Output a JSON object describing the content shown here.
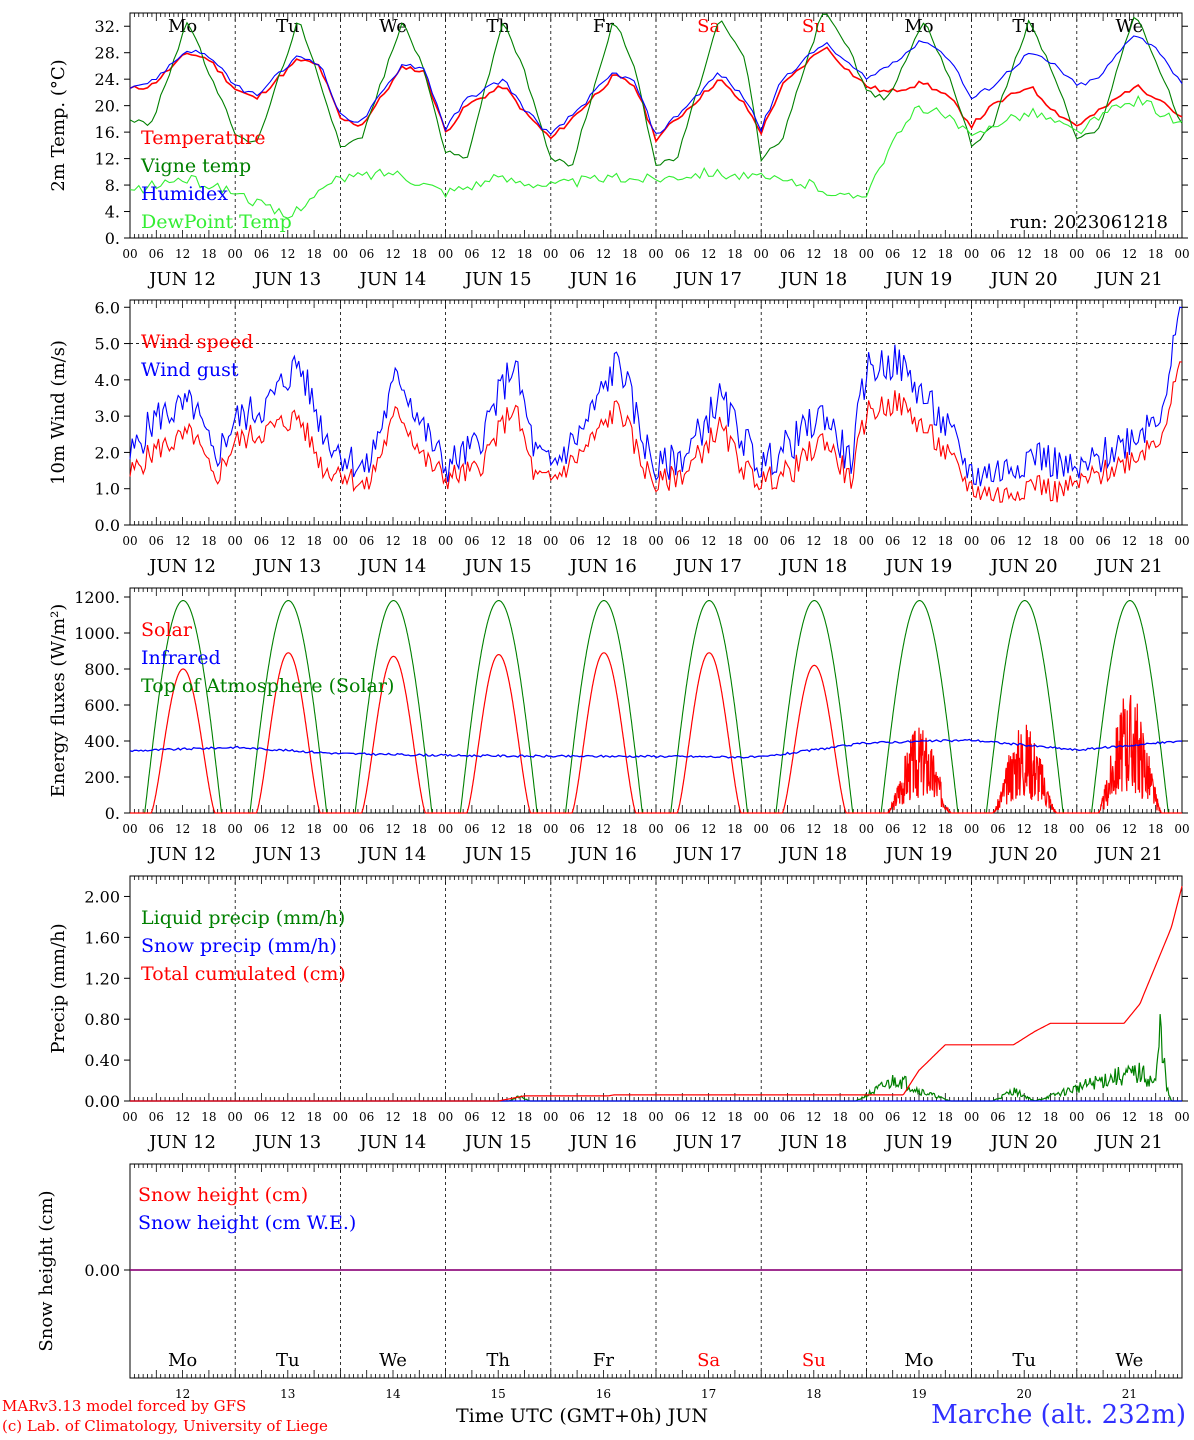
{
  "footer": {
    "model_line": "MARv3.13 model forced by GFS",
    "credit_line": "(c) Lab. of Climatology, University of Liege",
    "xaxis_title": "Time UTC (GMT+0h)",
    "month": "JUN",
    "station": "Marche (alt. 232m)"
  },
  "days": {
    "weekday_labels": [
      "Mo",
      "Tu",
      "We",
      "Th",
      "Fr",
      "Sa",
      "Su",
      "Mo",
      "Tu",
      "We"
    ],
    "weekend_index": [
      5,
      6
    ],
    "date_labels": [
      "JUN 12",
      "JUN 13",
      "JUN 14",
      "JUN 15",
      "JUN 16",
      "JUN 17",
      "JUN 18",
      "JUN 19",
      "JUN 20",
      "JUN 21"
    ],
    "day_numbers": [
      "12",
      "13",
      "14",
      "15",
      "16",
      "17",
      "18",
      "19",
      "20",
      "21"
    ],
    "hour_ticks": [
      "00",
      "06",
      "12",
      "18"
    ],
    "final_tick": "00"
  },
  "colors": {
    "red": "#ff0000",
    "dark_green": "#008000",
    "blue": "#0000ff",
    "light_green": "#33ee33",
    "purple": "#800080"
  },
  "chart_data": [
    {
      "type": "line",
      "ylabel": "2m Temp. (°C)",
      "ylim": [
        0,
        34
      ],
      "ytick_labels": [
        "0.",
        "4.",
        "8.",
        "12.",
        "16.",
        "20.",
        "24.",
        "28.",
        "32."
      ],
      "annotation": "run: 2023061218",
      "x_unit": "days since JUN 12 00 UTC",
      "series": [
        {
          "name": "Temperature",
          "color": "red",
          "x": [
            0,
            0.2,
            0.55,
            0.75,
            1,
            1.2,
            1.6,
            1.8,
            2,
            2.2,
            2.6,
            2.8,
            3,
            3.2,
            3.55,
            3.75,
            4,
            4.2,
            4.6,
            4.8,
            5,
            5.2,
            5.6,
            5.85,
            6,
            6.2,
            6.6,
            6.85,
            7,
            7.2,
            7.55,
            7.8,
            8,
            8.2,
            8.55,
            8.8,
            9,
            9.2,
            9.55,
            9.8,
            10
          ],
          "y": [
            22.5,
            23,
            28,
            27,
            22.5,
            21,
            27,
            26,
            18,
            17,
            26,
            25,
            16,
            20,
            23,
            19,
            15,
            18,
            24.5,
            23,
            15,
            18,
            24,
            20,
            16,
            23,
            29,
            25,
            23,
            22,
            23.5,
            21,
            17,
            20,
            23,
            19,
            17,
            19,
            23,
            21,
            18
          ]
        },
        {
          "name": "Vigne temp",
          "color": "dark_green",
          "x": [
            0,
            0.2,
            0.55,
            0.75,
            1,
            1.2,
            1.6,
            1.8,
            2,
            2.2,
            2.6,
            2.8,
            3,
            3.2,
            3.55,
            3.75,
            4,
            4.2,
            4.6,
            4.8,
            5,
            5.2,
            5.6,
            5.85,
            6,
            6.2,
            6.6,
            6.85,
            7,
            7.2,
            7.55,
            7.8,
            8,
            8.2,
            8.55,
            8.8,
            9,
            9.2,
            9.55,
            9.8,
            10
          ],
          "y": [
            18,
            17,
            33,
            25,
            16,
            14,
            33,
            24,
            14,
            15,
            33,
            25,
            13,
            12,
            33,
            25,
            12,
            11,
            33,
            26,
            11,
            12,
            33,
            27,
            12,
            15,
            35,
            28,
            22,
            21,
            33,
            24,
            14,
            17,
            33,
            24,
            15,
            16,
            34,
            25,
            17
          ]
        },
        {
          "name": "Humidex",
          "color": "blue",
          "x": [
            0,
            0.2,
            0.55,
            0.75,
            1,
            1.2,
            1.6,
            1.8,
            2,
            2.2,
            2.6,
            2.8,
            3,
            3.2,
            3.55,
            3.75,
            4,
            4.2,
            4.6,
            4.8,
            5,
            5.2,
            5.6,
            5.85,
            6,
            6.2,
            6.6,
            6.85,
            7,
            7.2,
            7.55,
            7.8,
            8,
            8.2,
            8.55,
            8.8,
            9,
            9.2,
            9.55,
            9.8,
            10
          ],
          "y": [
            23,
            23.5,
            28.5,
            27.5,
            23,
            21.5,
            27.5,
            26.5,
            18.5,
            17.5,
            26.5,
            25.5,
            16.5,
            21,
            24,
            19.5,
            15.5,
            18.5,
            25,
            23.5,
            15.5,
            18.5,
            25,
            21,
            16.5,
            24,
            29.5,
            26,
            24,
            26,
            30,
            27,
            21,
            23,
            28,
            26,
            23,
            24,
            31,
            28,
            23
          ]
        },
        {
          "name": "DewPoint Temp",
          "color": "light_green",
          "x": [
            0,
            0.5,
            1,
            1.5,
            1.7,
            2,
            2.5,
            3,
            3.5,
            4,
            4.5,
            5,
            5.5,
            6,
            6.5,
            6.8,
            7,
            7.2,
            7.5,
            7.8,
            8,
            8.3,
            8.6,
            9,
            9.3,
            9.6,
            10
          ],
          "y": [
            7,
            9,
            7,
            3,
            6,
            9,
            10,
            7,
            9,
            8,
            9,
            9,
            10,
            9,
            8,
            6,
            7,
            13,
            20,
            18,
            15,
            18,
            19,
            16,
            19,
            21,
            17
          ]
        }
      ]
    },
    {
      "type": "line",
      "ylabel": "10m Wind (m/s)",
      "ylim": [
        0,
        6.2
      ],
      "ytick_labels": [
        "0.0",
        "1.0",
        "2.0",
        "3.0",
        "4.0",
        "5.0",
        "6.0"
      ],
      "ref_line": 5.0,
      "x_unit": "days since JUN 12 00 UTC",
      "series": [
        {
          "name": "Wind speed",
          "color": "red",
          "x": [
            0,
            0.25,
            0.6,
            0.8,
            1,
            1.3,
            1.6,
            1.85,
            2,
            2.25,
            2.55,
            2.8,
            3,
            3.3,
            3.65,
            3.85,
            4,
            4.3,
            4.65,
            4.85,
            5,
            5.3,
            5.6,
            5.85,
            6,
            6.3,
            6.6,
            6.85,
            7,
            7.3,
            7.6,
            7.8,
            8,
            8.3,
            8.6,
            8.8,
            9,
            9.3,
            9.6,
            9.8,
            10
          ],
          "y": [
            1.4,
            2.1,
            2.5,
            1.2,
            2.3,
            2.6,
            3.0,
            1.5,
            1.5,
            1.0,
            3.2,
            1.8,
            1.3,
            1.5,
            3.3,
            1.3,
            1.2,
            2.0,
            3.3,
            1.8,
            1.1,
            1.5,
            2.7,
            1.5,
            1.2,
            1.5,
            2.4,
            1.2,
            3.1,
            3.4,
            2.5,
            1.8,
            1.0,
            0.8,
            1.2,
            0.9,
            1.1,
            1.5,
            2.0,
            2.5,
            4.5
          ]
        },
        {
          "name": "Wind gust",
          "color": "blue",
          "x": [
            0,
            0.25,
            0.6,
            0.8,
            1,
            1.3,
            1.6,
            1.85,
            2,
            2.25,
            2.55,
            2.8,
            3,
            3.3,
            3.65,
            3.85,
            4,
            4.3,
            4.65,
            4.85,
            5,
            5.3,
            5.6,
            5.85,
            6,
            6.3,
            6.6,
            6.85,
            7,
            7.3,
            7.6,
            7.8,
            8,
            8.3,
            8.6,
            8.8,
            9,
            9.3,
            9.6,
            9.8,
            10
          ],
          "y": [
            1.9,
            3.0,
            3.3,
            1.8,
            2.9,
            3.3,
            4.5,
            2.5,
            2.0,
            1.5,
            4.2,
            2.6,
            1.6,
            2.2,
            4.5,
            2.0,
            1.6,
            2.6,
            4.6,
            2.6,
            1.5,
            2.0,
            3.5,
            2.3,
            1.6,
            2.3,
            3.1,
            1.7,
            4.3,
            4.5,
            3.3,
            2.5,
            1.4,
            1.5,
            2.0,
            1.7,
            1.4,
            2.0,
            2.6,
            3.2,
            6.0
          ]
        }
      ]
    },
    {
      "type": "line",
      "ylabel": "Energy fluxes (W/m²)",
      "ylim": [
        0,
        1250
      ],
      "ytick_labels": [
        "0.",
        "200.",
        "400.",
        "600.",
        "800.",
        "1000.",
        "1200."
      ],
      "x_unit": "days since JUN 12 00 UTC",
      "series": [
        {
          "name": "Solar",
          "color": "red",
          "daily_peak": [
            800,
            890,
            870,
            880,
            890,
            890,
            820,
            490,
            520,
            690
          ],
          "cloudy_days": [
            7,
            8,
            9
          ]
        },
        {
          "name": "Infrared",
          "color": "blue",
          "x": [
            0,
            1,
            2,
            3,
            4,
            5,
            6,
            7,
            8,
            9,
            10
          ],
          "y": [
            345,
            365,
            330,
            320,
            315,
            315,
            310,
            390,
            405,
            350,
            400
          ]
        },
        {
          "name": "Top of Atmosphere (Solar)",
          "color": "dark_green",
          "daily_peak": [
            1180,
            1180,
            1180,
            1180,
            1180,
            1180,
            1180,
            1180,
            1180,
            1180
          ]
        }
      ]
    },
    {
      "type": "line",
      "ylabel": "Precip (mm/h)",
      "ylim": [
        0,
        2.2
      ],
      "ytick_labels": [
        "0.00",
        "0.40",
        "0.80",
        "1.20",
        "1.60",
        "2.00"
      ],
      "x_unit": "days since JUN 12 00 UTC",
      "series": [
        {
          "name": "Liquid precip (mm/h)",
          "color": "dark_green",
          "x": [
            0,
            3.6,
            3.7,
            3.8,
            6.9,
            7.3,
            7.5,
            7.8,
            8.2,
            8.4,
            8.6,
            9.3,
            9.6,
            9.75,
            9.8,
            9.85,
            9.9,
            10
          ],
          "y": [
            0,
            0,
            0.05,
            0,
            0,
            0.26,
            0.12,
            0,
            0,
            0.12,
            0,
            0.26,
            0.32,
            0.2,
            0.9,
            0.15,
            0,
            0
          ]
        },
        {
          "name": "Snow precip (mm/h)",
          "color": "blue",
          "x": [
            0,
            10
          ],
          "y": [
            0,
            0
          ]
        },
        {
          "name": "Total cumulated (cm)",
          "color": "red",
          "x": [
            0,
            3.5,
            3.75,
            4.55,
            4.6,
            7.35,
            7.5,
            7.75,
            8.4,
            8.6,
            8.75,
            9.45,
            9.6,
            9.9,
            10
          ],
          "y": [
            0,
            0,
            0.05,
            0.05,
            0.06,
            0.06,
            0.3,
            0.55,
            0.55,
            0.68,
            0.76,
            0.76,
            0.95,
            1.7,
            2.1
          ]
        }
      ]
    },
    {
      "type": "line",
      "ylabel": "Snow height (cm)",
      "ytick_labels": [
        "0.00"
      ],
      "x_unit": "days since JUN 12 00 UTC",
      "series": [
        {
          "name": "Snow height (cm)",
          "color": "red",
          "x": [
            0,
            10
          ],
          "y": [
            0,
            0
          ]
        },
        {
          "name": "Snow height (cm W.E.)",
          "color": "blue",
          "x": [
            0,
            10
          ],
          "y": [
            0,
            0
          ]
        }
      ]
    }
  ]
}
